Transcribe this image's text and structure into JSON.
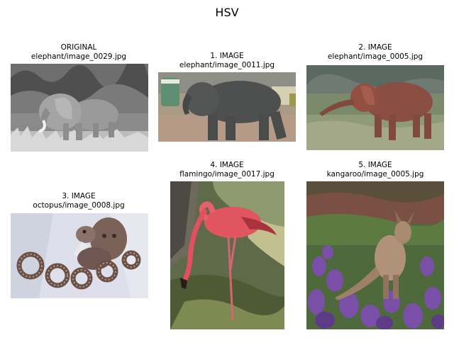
{
  "title": "HSV",
  "panels": [
    {
      "heading": "ORIGINAL",
      "file": "elephant/image_0029.jpg",
      "subject": "elephant",
      "tone": "grayscale"
    },
    {
      "heading": "1. IMAGE",
      "file": "elephant/image_0011.jpg",
      "subject": "elephant",
      "tone": "color"
    },
    {
      "heading": "2. IMAGE",
      "file": "elephant/image_0005.jpg",
      "subject": "elephant",
      "tone": "color"
    },
    {
      "heading": "3. IMAGE",
      "file": "octopus/image_0008.jpg",
      "subject": "octopus",
      "tone": "color"
    },
    {
      "heading": "4. IMAGE",
      "file": "flamingo/image_0017.jpg",
      "subject": "flamingo",
      "tone": "color"
    },
    {
      "heading": "5. IMAGE",
      "file": "kangaroo/image_0005.jpg",
      "subject": "kangaroo",
      "tone": "color"
    }
  ]
}
